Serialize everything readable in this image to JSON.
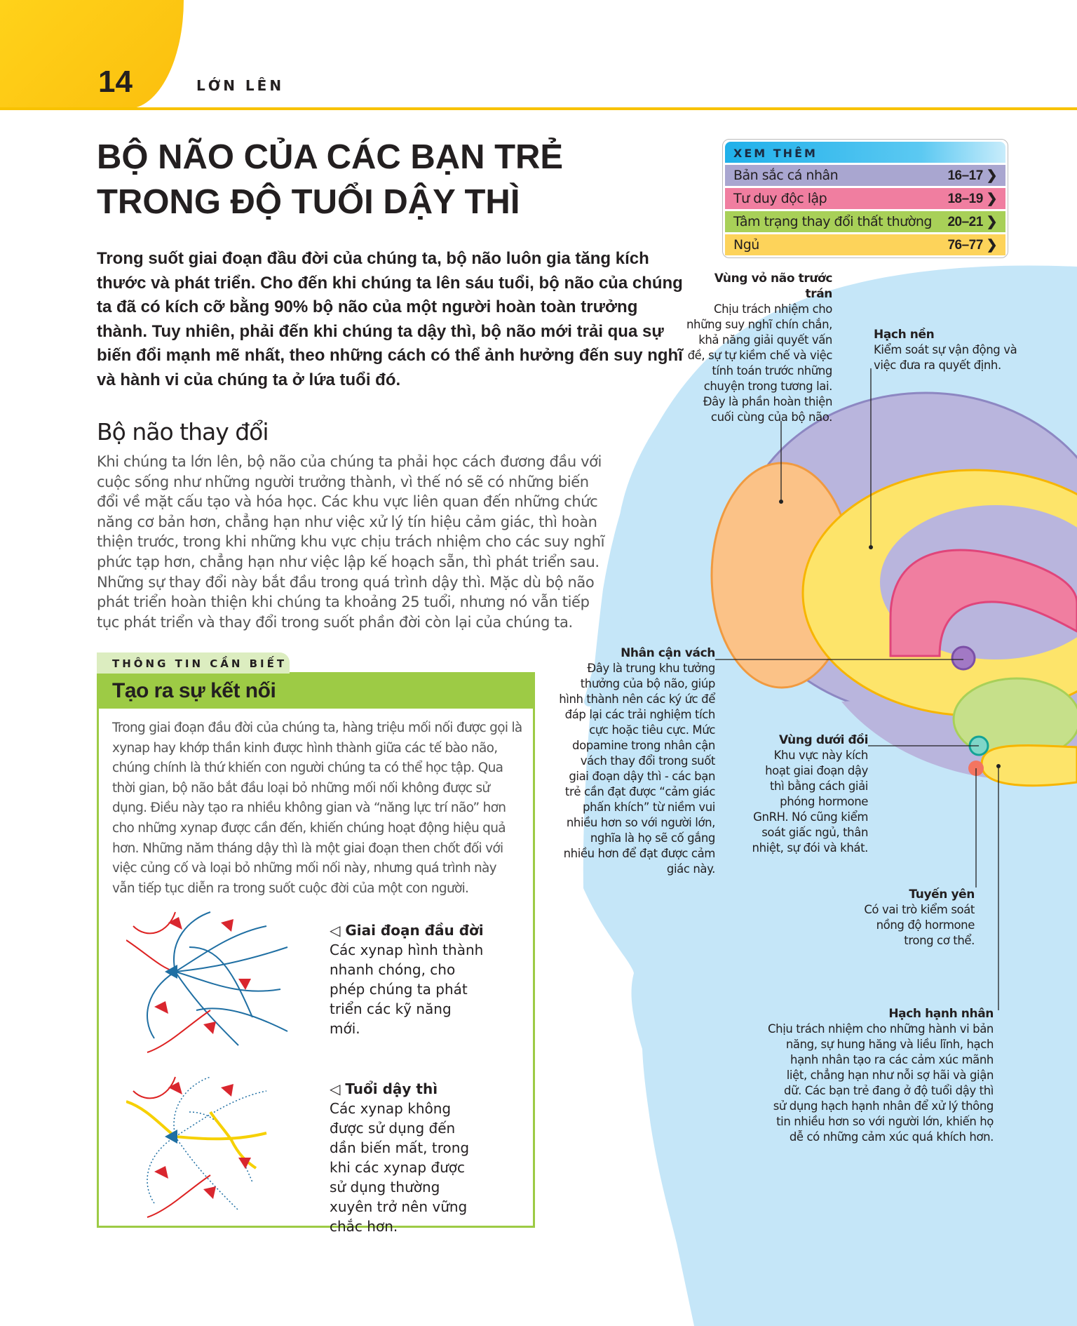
{
  "header": {
    "page_number": "14",
    "section": "LỚN LÊN"
  },
  "title": [
    "BỘ NÃO CỦA CÁC BẠN TRẺ",
    "TRONG ĐỘ TUỔI DẬY THÌ"
  ],
  "intro": "Trong suốt giai đoạn đầu đời của chúng ta, bộ não luôn gia tăng kích thước và phát triển. Cho đến khi chúng ta lên sáu tuổi, bộ não của chúng ta đã có kích cỡ bằng 90% bộ não của một người hoàn toàn trưởng thành. Tuy nhiên, phải đến khi chúng ta dậy thì, bộ não mới trải qua sự biến đổi mạnh mẽ nhất, theo những cách có thể ảnh hưởng đến suy nghĩ và hành vi của chúng ta ở lứa tuổi đó.",
  "section_heading": "Bộ não thay đổi",
  "body": "Khi chúng ta lớn lên, bộ não của chúng ta phải học cách đương đầu với cuộc sống như những người trưởng thành, vì thế nó sẽ có những biến đổi về mặt cấu tạo và hóa học. Các khu vực liên quan đến những chức năng cơ bản hơn, chẳng hạn như việc xử lý tín hiệu cảm giác, thì hoàn thiện trước, trong khi những khu vực chịu trách nhiệm cho các suy nghĩ phức tạp hơn, chẳng hạn như việc lập kế hoạch sẵn, thì phát triển sau. Những sự thay đổi này bắt đầu trong quá trình dậy thì. Mặc dù bộ não phát triển hoàn thiện khi chúng ta khoảng 25 tuổi, nhưng nó vẫn tiếp tục phát triển và thay đổi trong suốt phần đời còn lại của chúng ta.",
  "see_also": {
    "heading": "XEM THÊM",
    "items": [
      {
        "label": "Bản sắc cá nhân",
        "pages": "16–17",
        "color": "#a9a6d0"
      },
      {
        "label": "Tư duy độc lập",
        "pages": "18–19",
        "color": "#f07ea0"
      },
      {
        "label": "Tâm trạng thay đổi thất thường",
        "pages": "20–21",
        "color": "#a8d058"
      },
      {
        "label": "Ngủ",
        "pages": "76–77",
        "color": "#fdd35a"
      }
    ]
  },
  "labels": {
    "prefrontal": {
      "title": "Vùng vỏ não trước trán",
      "text": "Chịu trách nhiệm cho những suy nghĩ chín chắn, khả năng giải quyết vấn đề, sự tự kiềm chế và việc tính toán trước những chuyện trong tương lai. Đây là phần hoàn thiện cuối cùng của bộ não."
    },
    "basal": {
      "title": "Hạch nền",
      "text": "Kiểm soát sự vận động và việc đưa ra quyết định."
    },
    "accumbens": {
      "title": "Nhân cận vách",
      "text": "Đây là trung khu tưởng thưởng của bộ não, giúp hình thành nên các ký ức để đáp lại các trải nghiệm tích cực hoặc tiêu cực. Mức dopamine trong nhân cận vách thay đổi trong suốt giai đoạn dậy thì - các bạn trẻ cần đạt được “cảm giác phấn khích” từ niềm vui nhiều hơn so với người lớn, nghĩa là họ sẽ cố gắng nhiều hơn để đạt được cảm giác này."
    },
    "hypothalamus": {
      "title": "Vùng dưới đồi",
      "text": "Khu vực này kích hoạt giai đoạn dậy thì bằng cách giải phóng hormone GnRH. Nó cũng kiểm soát giấc ngủ, thân nhiệt, sự đói và khát."
    },
    "pituitary": {
      "title": "Tuyến yên",
      "text": "Có vai trò kiểm soát nồng độ hormone trong cơ thể."
    },
    "amygdala": {
      "title": "Hạch hạnh nhân",
      "text": "Chịu trách nhiệm cho những hành vi bản năng, sự hung hăng và liều lĩnh, hạch hạnh nhân tạo ra các cảm xúc mãnh liệt, chẳng hạn như nỗi sợ hãi và giận dữ. Các bạn trẻ đang ở độ tuổi dậy thì sử dụng hạch hạnh nhân để xử lý thông tin nhiều hơn so với người lớn, khiến họ dễ có những cảm xúc quá khích hơn."
    }
  },
  "infobox": {
    "tag": "THÔNG TIN CẦN BIẾT",
    "heading": "Tạo ra sự kết nối",
    "text": "Trong giai đoạn đầu đời của chúng ta, hàng triệu mối nối được gọi là xynap hay khớp thần kinh được hình thành giữa các tế bào não, chúng chính là thứ khiến con người chúng ta có thể học tập. Qua thời gian, bộ não bắt đầu loại bỏ những mối nối không được sử dụng. Điều này tạo ra nhiều không gian và “năng lực trí não” hơn cho những xynap được cần đến, khiến chúng hoạt động hiệu quả hơn. Những năm tháng dậy thì là một giai đoạn then chốt đối với việc củng cố và loại bỏ những mối nối này, nhưng quá trình này vẫn tiếp tục diễn ra trong suốt cuộc đời của một con người.",
    "early": {
      "title": "◁ Giai đoạn đầu đời",
      "text": "Các xynap hình thành nhanh chóng, cho phép chúng ta phát triển các kỹ năng mới."
    },
    "puberty": {
      "title": "◁ Tuổi dậy thì",
      "text": "Các xynap không được sử dụng đến dần biến mất, trong khi các xynap được sử dụng thường xuyên trở nên vững chắc hơn."
    }
  },
  "colors": {
    "accent": "#f8c200",
    "head": "#c5e6f8",
    "green": "#9dcb45",
    "brain": "#b9b5dd",
    "frontal": "#fbc287",
    "limbic": "#fde46a"
  }
}
